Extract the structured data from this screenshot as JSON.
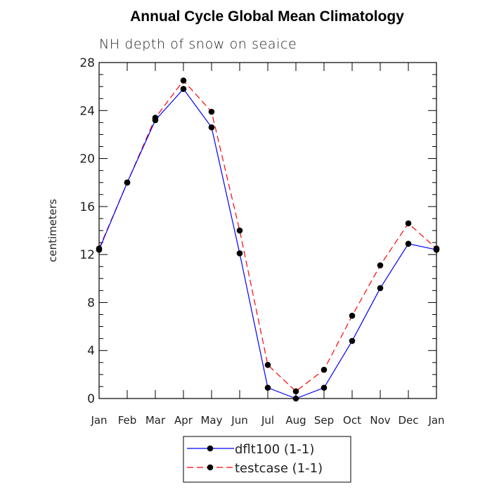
{
  "chart_data": {
    "type": "line",
    "title": "Annual Cycle Global Mean Climatology",
    "subtitle": "NH depth of snow on seaice",
    "xlabel": "",
    "ylabel": "centimeters",
    "categories": [
      "Jan",
      "Feb",
      "Mar",
      "Apr",
      "May",
      "Jun",
      "Jul",
      "Aug",
      "Sep",
      "Oct",
      "Nov",
      "Dec",
      "Jan"
    ],
    "ylim": [
      0,
      28
    ],
    "yticks": [
      0,
      4,
      8,
      12,
      16,
      20,
      24,
      28
    ],
    "yticklabels": [
      "0",
      "4",
      "8",
      "12",
      "16",
      "20",
      "24",
      "28"
    ],
    "series": [
      {
        "name": "dflt100 (1-1)",
        "color": "#0000ff",
        "dash": "solid",
        "values": [
          12.4,
          18.0,
          23.2,
          25.8,
          22.6,
          12.1,
          0.9,
          0.0,
          0.9,
          4.8,
          9.2,
          12.9,
          12.4
        ]
      },
      {
        "name": "testcase (1-1)",
        "color": "#ff0000",
        "dash": "dashed",
        "values": [
          12.5,
          18.0,
          23.4,
          26.5,
          23.9,
          14.0,
          2.8,
          0.6,
          2.4,
          6.9,
          11.1,
          14.6,
          12.5
        ]
      }
    ],
    "legend": {
      "entries": [
        "dflt100 (1-1)",
        "testcase (1-1)"
      ],
      "position": "bottom-center"
    },
    "grid": false,
    "marker_color": "#000000"
  }
}
